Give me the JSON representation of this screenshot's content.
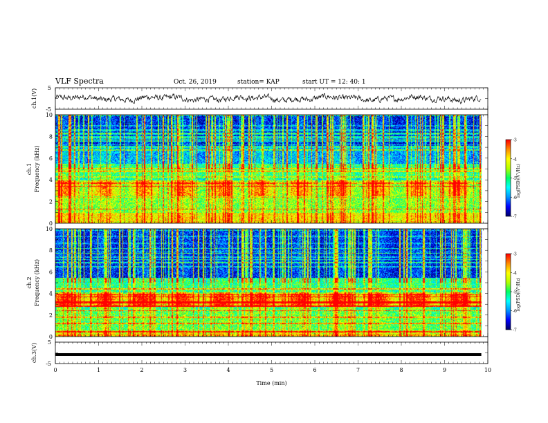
{
  "header": {
    "title": "VLF Spectra",
    "date": "Oct. 26, 2019",
    "station": "station= KAP",
    "start": "start  UT =   12: 40: 1"
  },
  "colors": {
    "colormap": [
      "#00006a",
      "#0000ff",
      "#0096ff",
      "#00ffff",
      "#00ff64",
      "#b4ff00",
      "#ffff00",
      "#ff8c00",
      "#ff0000",
      "#ffffff"
    ],
    "trace": "#000000",
    "axis": "#000000"
  },
  "chart_data": [
    {
      "type": "line",
      "panel": "ch1-waveform",
      "ylabel": "ch.1(V)",
      "ylim": [
        -5,
        5
      ],
      "yticks": [
        "5",
        "-5"
      ],
      "xlim": [
        0,
        9.85
      ],
      "description_values": "noisy waveform centred near 0 V, amplitude about ±2 V"
    },
    {
      "type": "heatmap",
      "panel": "ch1-spectrogram",
      "ylabel_top": "ch.1",
      "ylabel": "Frequency  (kHz)",
      "ylim": [
        0,
        10
      ],
      "yticks": [
        "0",
        "2",
        "4",
        "6",
        "8",
        "10"
      ],
      "xlim": [
        0,
        9.85
      ],
      "colorbar": {
        "label": "log(PSD)(V²/Hz)",
        "min": -7,
        "max": -3,
        "ticks": [
          "-3",
          "-4",
          "-5",
          "-6",
          "-7"
        ]
      },
      "bands_khz": [
        {
          "lo": 0.0,
          "hi": 1.0,
          "level": -4.0
        },
        {
          "lo": 1.0,
          "hi": 2.5,
          "level": -4.6
        },
        {
          "lo": 2.5,
          "hi": 4.0,
          "level": -4.1
        },
        {
          "lo": 4.0,
          "hi": 5.5,
          "level": -5.0
        },
        {
          "lo": 5.5,
          "hi": 7.0,
          "level": -5.8
        },
        {
          "lo": 7.0,
          "hi": 10.0,
          "level": -6.4
        }
      ]
    },
    {
      "type": "heatmap",
      "panel": "ch2-spectrogram",
      "ylabel_top": "ch.2",
      "ylabel": "Frequency  (kHz)",
      "ylim": [
        0,
        10
      ],
      "yticks": [
        "0",
        "2",
        "4",
        "6",
        "8",
        "10"
      ],
      "xlim": [
        0,
        9.85
      ],
      "colorbar": {
        "label": "log(PSD)(V²/Hz)",
        "min": -7,
        "max": -3,
        "ticks": [
          "-3",
          "-4",
          "-5",
          "-6",
          "-7"
        ]
      },
      "bands_khz": [
        {
          "lo": 0.0,
          "hi": 0.6,
          "level": -4.2
        },
        {
          "lo": 0.6,
          "hi": 2.8,
          "level": -4.8
        },
        {
          "lo": 2.8,
          "hi": 4.0,
          "level": -3.6
        },
        {
          "lo": 4.0,
          "hi": 5.5,
          "level": -5.1
        },
        {
          "lo": 5.5,
          "hi": 10.0,
          "level": -6.4
        }
      ]
    },
    {
      "type": "line",
      "panel": "ch3-waveform",
      "ylabel": "ch.3(V)",
      "ylim": [
        -5,
        5
      ],
      "yticks": [
        "5",
        "-5"
      ],
      "xlim": [
        0,
        9.85
      ],
      "description_values": "flat trace near -1 V"
    }
  ],
  "xaxis": {
    "label": "Time  (min)",
    "ticks": [
      "0",
      "1",
      "2",
      "3",
      "4",
      "5",
      "6",
      "7",
      "8",
      "9",
      "10"
    ]
  }
}
